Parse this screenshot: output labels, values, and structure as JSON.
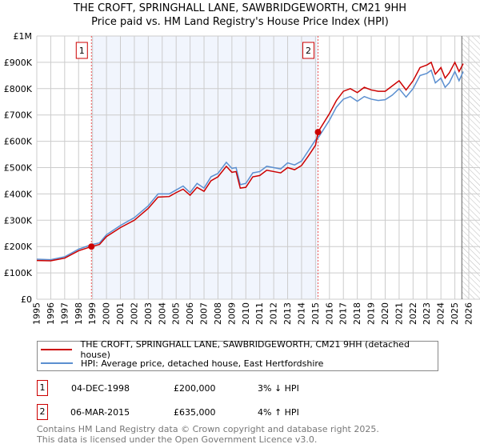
{
  "chart_data": {
    "type": "line",
    "title": "THE CROFT, SPRINGHALL LANE, SAWBRIDGEWORTH, CM21 9HH",
    "subtitle": "Price paid vs. HM Land Registry's House Price Index (HPI)",
    "xlim": [
      1995,
      2026
    ],
    "ylim": [
      0,
      1000000
    ],
    "y_ticks": [
      {
        "v": 0,
        "label": "£0"
      },
      {
        "v": 100000,
        "label": "£100K"
      },
      {
        "v": 200000,
        "label": "£200K"
      },
      {
        "v": 300000,
        "label": "£300K"
      },
      {
        "v": 400000,
        "label": "£400K"
      },
      {
        "v": 500000,
        "label": "£500K"
      },
      {
        "v": 600000,
        "label": "£600K"
      },
      {
        "v": 700000,
        "label": "£700K"
      },
      {
        "v": 800000,
        "label": "£800K"
      },
      {
        "v": 900000,
        "label": "£900K"
      },
      {
        "v": 1000000,
        "label": "£1M"
      }
    ],
    "x_ticks": [
      "1995",
      "1996",
      "1997",
      "1998",
      "1999",
      "2000",
      "2001",
      "2002",
      "2003",
      "2004",
      "2005",
      "2006",
      "2007",
      "2008",
      "2009",
      "2010",
      "2011",
      "2012",
      "2013",
      "2014",
      "2015",
      "2016",
      "2017",
      "2018",
      "2019",
      "2020",
      "2021",
      "2022",
      "2023",
      "2024",
      "2025",
      "2026"
    ],
    "grid": true,
    "series": [
      {
        "name": "THE CROFT, SPRINGHALL LANE, SAWBRIDGEWORTH, CM21 9HH (detached house)",
        "color": "#cc0000",
        "points": [
          [
            1995,
            147000
          ],
          [
            1996,
            146000
          ],
          [
            1997,
            156000
          ],
          [
            1998,
            184000
          ],
          [
            1998.92,
            200000
          ],
          [
            1999.5,
            208000
          ],
          [
            2000,
            238000
          ],
          [
            2001,
            272000
          ],
          [
            2002,
            300000
          ],
          [
            2003,
            345000
          ],
          [
            2003.7,
            388000
          ],
          [
            2004.5,
            390000
          ],
          [
            2005,
            405000
          ],
          [
            2005.5,
            418000
          ],
          [
            2006,
            395000
          ],
          [
            2006.5,
            425000
          ],
          [
            2007,
            410000
          ],
          [
            2007.5,
            450000
          ],
          [
            2008,
            465000
          ],
          [
            2008.6,
            505000
          ],
          [
            2009,
            482000
          ],
          [
            2009.3,
            485000
          ],
          [
            2009.6,
            422000
          ],
          [
            2010,
            425000
          ],
          [
            2010.5,
            465000
          ],
          [
            2011,
            470000
          ],
          [
            2011.5,
            490000
          ],
          [
            2012,
            485000
          ],
          [
            2012.5,
            480000
          ],
          [
            2013,
            500000
          ],
          [
            2013.5,
            492000
          ],
          [
            2014,
            508000
          ],
          [
            2014.5,
            545000
          ],
          [
            2015,
            585000
          ],
          [
            2015.18,
            635000
          ],
          [
            2016,
            705000
          ],
          [
            2016.5,
            755000
          ],
          [
            2017,
            790000
          ],
          [
            2017.5,
            800000
          ],
          [
            2018,
            785000
          ],
          [
            2018.5,
            805000
          ],
          [
            2019,
            795000
          ],
          [
            2019.5,
            790000
          ],
          [
            2020,
            790000
          ],
          [
            2020.5,
            810000
          ],
          [
            2021,
            830000
          ],
          [
            2021.5,
            795000
          ],
          [
            2022,
            830000
          ],
          [
            2022.5,
            880000
          ],
          [
            2023,
            890000
          ],
          [
            2023.3,
            900000
          ],
          [
            2023.6,
            855000
          ],
          [
            2024,
            880000
          ],
          [
            2024.3,
            840000
          ],
          [
            2024.6,
            860000
          ],
          [
            2025,
            900000
          ],
          [
            2025.3,
            865000
          ],
          [
            2025.6,
            895000
          ]
        ]
      },
      {
        "name": "HPI: Average price, detached house, East Hertfordshire",
        "color": "#5b8fd0",
        "points": [
          [
            1995,
            152000
          ],
          [
            1996,
            150000
          ],
          [
            1997,
            161000
          ],
          [
            1998,
            190000
          ],
          [
            1998.92,
            207000
          ],
          [
            1999.5,
            214000
          ],
          [
            2000,
            245000
          ],
          [
            2001,
            280000
          ],
          [
            2002,
            310000
          ],
          [
            2003,
            355000
          ],
          [
            2003.7,
            400000
          ],
          [
            2004.5,
            400000
          ],
          [
            2005,
            415000
          ],
          [
            2005.5,
            430000
          ],
          [
            2006,
            405000
          ],
          [
            2006.5,
            440000
          ],
          [
            2007,
            422000
          ],
          [
            2007.5,
            465000
          ],
          [
            2008,
            478000
          ],
          [
            2008.6,
            520000
          ],
          [
            2009,
            497000
          ],
          [
            2009.3,
            500000
          ],
          [
            2009.6,
            435000
          ],
          [
            2010,
            440000
          ],
          [
            2010.5,
            480000
          ],
          [
            2011,
            485000
          ],
          [
            2011.5,
            505000
          ],
          [
            2012,
            500000
          ],
          [
            2012.5,
            495000
          ],
          [
            2013,
            518000
          ],
          [
            2013.5,
            510000
          ],
          [
            2014,
            525000
          ],
          [
            2014.5,
            565000
          ],
          [
            2015,
            605000
          ],
          [
            2015.18,
            612000
          ],
          [
            2016,
            680000
          ],
          [
            2016.5,
            730000
          ],
          [
            2017,
            760000
          ],
          [
            2017.5,
            770000
          ],
          [
            2018,
            752000
          ],
          [
            2018.5,
            770000
          ],
          [
            2019,
            760000
          ],
          [
            2019.5,
            755000
          ],
          [
            2020,
            758000
          ],
          [
            2020.5,
            775000
          ],
          [
            2021,
            800000
          ],
          [
            2021.5,
            768000
          ],
          [
            2022,
            800000
          ],
          [
            2022.5,
            850000
          ],
          [
            2023,
            858000
          ],
          [
            2023.3,
            870000
          ],
          [
            2023.6,
            822000
          ],
          [
            2024,
            840000
          ],
          [
            2024.3,
            805000
          ],
          [
            2024.6,
            822000
          ],
          [
            2025,
            865000
          ],
          [
            2025.3,
            830000
          ],
          [
            2025.6,
            865000
          ]
        ]
      }
    ],
    "sales": [
      {
        "id": "1",
        "x": 1998.92,
        "value": 200000,
        "date": "04-DEC-1998",
        "price": "£200,000",
        "hpi": "3% ↓ HPI"
      },
      {
        "id": "2",
        "x": 2015.18,
        "value": 635000,
        "date": "06-MAR-2015",
        "price": "£635,000",
        "hpi": "4% ↑ HPI"
      }
    ],
    "shaded_range": [
      1998.92,
      2015.18
    ],
    "hatched_from": 2025.5,
    "legend_position": "bottom"
  },
  "footer": {
    "line1": "Contains HM Land Registry data © Crown copyright and database right 2025.",
    "line2": "This data is licensed under the Open Government Licence v3.0."
  }
}
